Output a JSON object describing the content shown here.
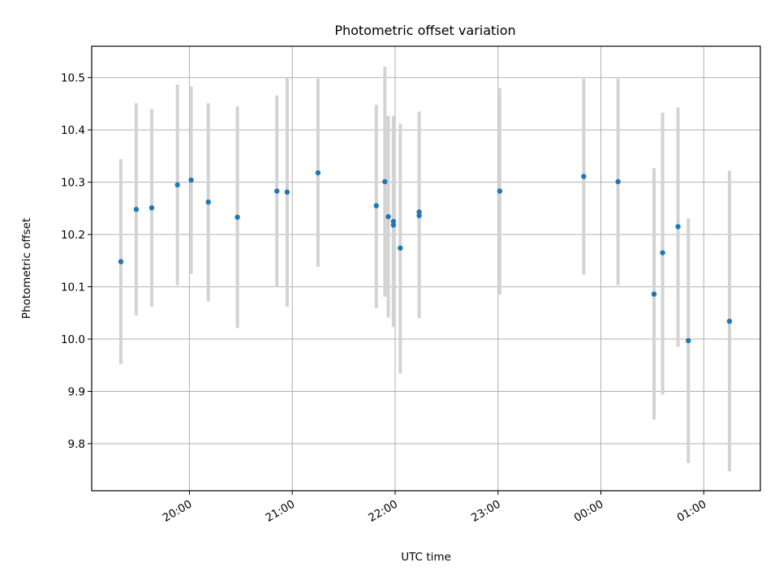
{
  "chart_data": {
    "type": "scatter",
    "title": "Photometric offset variation",
    "xlabel": "UTC time",
    "ylabel": "Photometric offset",
    "xlim": [
      "19:03",
      "01:33"
    ],
    "ylim": [
      9.71,
      10.56
    ],
    "grid": true,
    "x_ticks": [
      "20:00",
      "21:00",
      "22:00",
      "23:00",
      "00:00",
      "01:00"
    ],
    "y_ticks": [
      "9.8",
      "9.9",
      "10.0",
      "10.1",
      "10.2",
      "10.3",
      "10.4",
      "10.5"
    ],
    "marker_color": "#1f77b4",
    "errorbar_color": "#d3d3d3",
    "points": [
      {
        "t": "19:20",
        "y": 10.148,
        "lo": 9.952,
        "hi": 10.344
      },
      {
        "t": "19:29",
        "y": 10.248,
        "lo": 10.045,
        "hi": 10.451
      },
      {
        "t": "19:38",
        "y": 10.251,
        "lo": 10.062,
        "hi": 10.44
      },
      {
        "t": "19:53",
        "y": 10.295,
        "lo": 10.103,
        "hi": 10.487
      },
      {
        "t": "20:01",
        "y": 10.304,
        "lo": 10.125,
        "hi": 10.483
      },
      {
        "t": "20:11",
        "y": 10.262,
        "lo": 10.072,
        "hi": 10.451
      },
      {
        "t": "20:28",
        "y": 10.233,
        "lo": 10.021,
        "hi": 10.445
      },
      {
        "t": "20:51",
        "y": 10.283,
        "lo": 10.1,
        "hi": 10.466
      },
      {
        "t": "20:57",
        "y": 10.281,
        "lo": 10.062,
        "hi": 10.5
      },
      {
        "t": "21:15",
        "y": 10.318,
        "lo": 10.138,
        "hi": 10.498
      },
      {
        "t": "21:49",
        "y": 10.255,
        "lo": 10.059,
        "hi": 10.448
      },
      {
        "t": "21:54",
        "y": 10.301,
        "lo": 10.081,
        "hi": 10.521
      },
      {
        "t": "21:56",
        "y": 10.234,
        "lo": 10.041,
        "hi": 10.427
      },
      {
        "t": "21:59",
        "y": 10.225,
        "lo": 10.023,
        "hi": 10.427
      },
      {
        "t": "21:59",
        "y": 10.218,
        "lo": 10.037,
        "hi": 10.398
      },
      {
        "t": "22:03",
        "y": 10.174,
        "lo": 9.934,
        "hi": 10.412
      },
      {
        "t": "22:14",
        "y": 10.243,
        "lo": 10.052,
        "hi": 10.435
      },
      {
        "t": "22:14",
        "y": 10.236,
        "lo": 10.04,
        "hi": 10.431
      },
      {
        "t": "23:01",
        "y": 10.283,
        "lo": 10.085,
        "hi": 10.48
      },
      {
        "t": "23:50",
        "y": 10.311,
        "lo": 10.123,
        "hi": 10.498
      },
      {
        "t": "00:10",
        "y": 10.301,
        "lo": 10.103,
        "hi": 10.498
      },
      {
        "t": "00:31",
        "y": 10.086,
        "lo": 9.846,
        "hi": 10.327
      },
      {
        "t": "00:36",
        "y": 10.165,
        "lo": 9.894,
        "hi": 10.433
      },
      {
        "t": "00:45",
        "y": 10.215,
        "lo": 9.985,
        "hi": 10.443
      },
      {
        "t": "00:51",
        "y": 9.997,
        "lo": 9.763,
        "hi": 10.231
      },
      {
        "t": "01:15",
        "y": 10.034,
        "lo": 9.747,
        "hi": 10.322
      }
    ]
  }
}
